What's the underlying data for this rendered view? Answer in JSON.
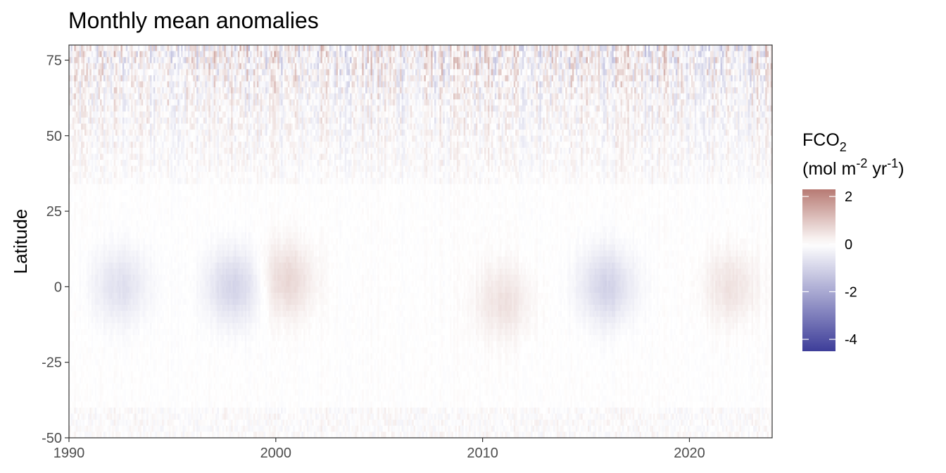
{
  "chart_data": {
    "type": "heatmap",
    "title": "Monthly mean anomalies",
    "xlabel": "",
    "ylabel": "Latitude",
    "xlim": [
      1990,
      2024
    ],
    "ylim": [
      -50,
      80
    ],
    "x_ticks": [
      1990,
      2000,
      2010,
      2020
    ],
    "y_ticks": [
      -50,
      -25,
      0,
      25,
      50,
      75
    ],
    "legend": {
      "title_main": "FCO",
      "title_sub": "2",
      "title_unit_a": "(mol m",
      "title_unit_a_sup": "-2",
      "title_unit_b": " yr",
      "title_unit_b_sup": "-1",
      "title_unit_c": ")",
      "placement": "right",
      "range": [
        -4.5,
        2.3
      ],
      "ticks": [
        2,
        0,
        -2,
        -4
      ],
      "colors": {
        "low": "#3d3d99",
        "mid": "#ffffff",
        "high": "#b77a73"
      }
    },
    "features": [
      {
        "description": "strong alternating anomalies",
        "lat_range": [
          55,
          80
        ],
        "amplitude": 2.2
      },
      {
        "description": "moderate anomalies",
        "lat_range": [
          35,
          55
        ],
        "amplitude": 1.0
      },
      {
        "description": "negative equatorial anomaly",
        "year": 1992.5,
        "lat": 0,
        "value": -0.7
      },
      {
        "description": "negative equatorial anomaly",
        "year": 1998.0,
        "lat": 0,
        "value": -1.0
      },
      {
        "description": "positive equatorial anomaly",
        "year": 2000.5,
        "lat": 2,
        "value": 0.7
      },
      {
        "description": "positive equatorial anomaly",
        "year": 2011.0,
        "lat": -5,
        "value": 0.5
      },
      {
        "description": "negative equatorial anomaly",
        "year": 2016.0,
        "lat": 0,
        "value": -1.0
      },
      {
        "description": "positive equatorial anomaly",
        "year": 2022.0,
        "lat": 0,
        "value": 0.5
      }
    ]
  }
}
